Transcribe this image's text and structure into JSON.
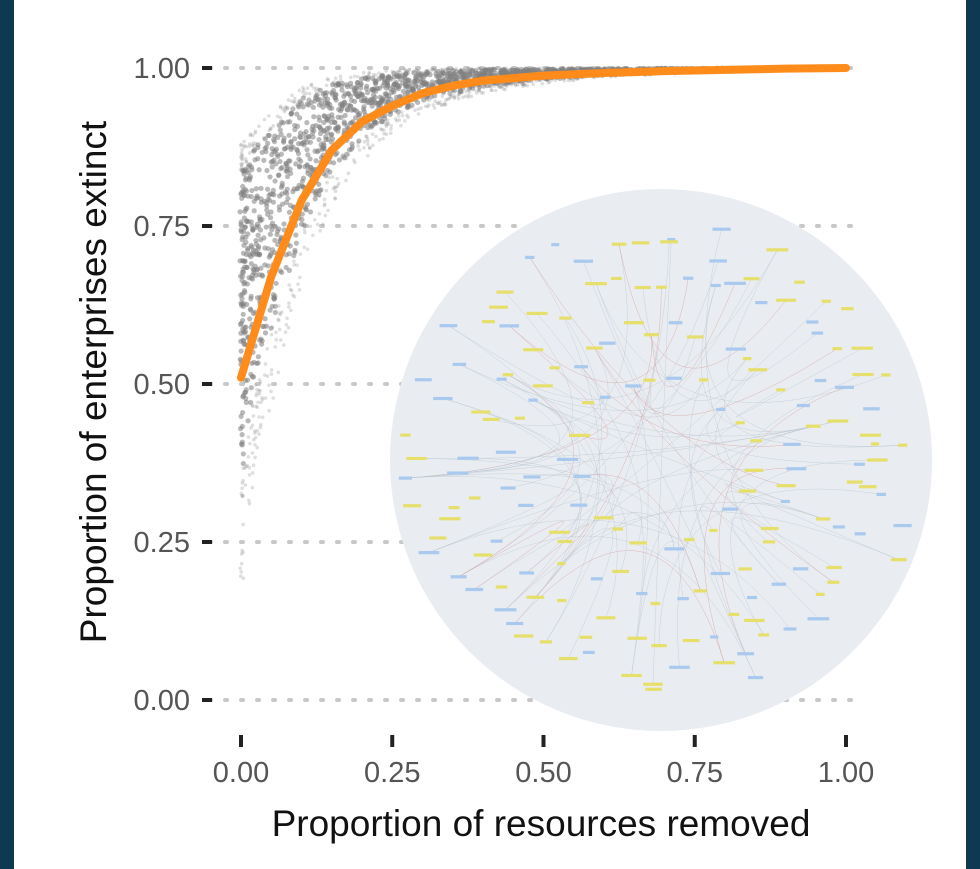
{
  "colors": {
    "frame": "#0d3a52",
    "panel": "#ffffff",
    "points": "#7f7f7f",
    "fit_line": "#ff8c1a",
    "grid": "#c8c8c8",
    "inset_background": "#e9edf1",
    "node_yellow": "#e6df6b",
    "node_blue": "#a9c9ee"
  },
  "chart_data": {
    "type": "scatter",
    "title": "",
    "xlabel": "Proportion of resources removed",
    "ylabel": "Proportion of enterprises extinct",
    "xlim": [
      0,
      1
    ],
    "ylim": [
      0,
      1
    ],
    "x_ticks": [
      0,
      0.25,
      0.5,
      0.75,
      1
    ],
    "y_ticks": [
      0,
      0.25,
      0.5,
      0.75,
      1
    ],
    "x_tick_labels": [
      "0.00",
      "0.25",
      "0.50",
      "0.75",
      "1.00"
    ],
    "y_tick_labels": [
      "0.00",
      "0.25",
      "0.50",
      "0.75",
      "1.00"
    ],
    "grid": "horizontal-dotted",
    "legend": "none",
    "fit_line": {
      "x": [
        0,
        0.05,
        0.1,
        0.15,
        0.2,
        0.25,
        0.3,
        0.35,
        0.4,
        0.5,
        0.6,
        0.7,
        0.8,
        0.9,
        1.0
      ],
      "y": [
        0.51,
        0.67,
        0.79,
        0.87,
        0.915,
        0.94,
        0.96,
        0.972,
        0.98,
        0.988,
        0.992,
        0.995,
        0.997,
        0.999,
        1.0
      ]
    },
    "point_cloud": {
      "x": [
        0,
        0.02,
        0.05,
        0.1,
        0.15,
        0.2,
        0.25,
        0.3,
        0.4,
        0.5,
        0.6,
        0.7,
        0.8,
        0.9,
        1.0
      ],
      "y_low": [
        0.15,
        0.33,
        0.46,
        0.66,
        0.78,
        0.85,
        0.9,
        0.93,
        0.96,
        0.975,
        0.985,
        0.99,
        0.994,
        0.997,
        1.0
      ],
      "y_high": [
        0.88,
        0.9,
        0.93,
        0.97,
        0.985,
        0.993,
        0.997,
        0.999,
        1.0,
        1.0,
        1.0,
        1.0,
        1.0,
        1.0,
        1.0
      ]
    }
  }
}
